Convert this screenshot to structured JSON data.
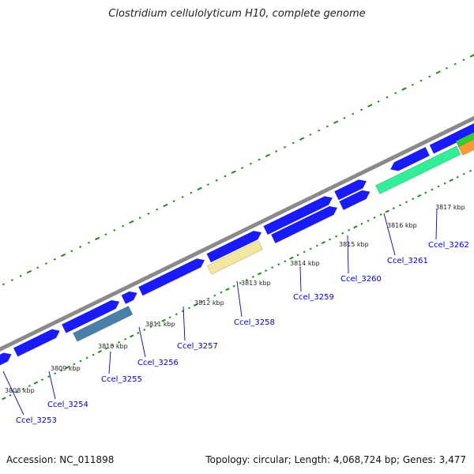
{
  "title": "Clostridium cellulolyticum H10, complete genome",
  "footer": {
    "accession": "Accession: NC_011898",
    "summary": "Topology: circular; Length: 4,068,724 bp; Genes: 3,477"
  },
  "colors": {
    "gene_blue": "#1a1aff",
    "backbone": "#8a8a8a",
    "tick_green": "#1f8a1f",
    "steel": "#4a7fa8",
    "khaki": "#f2e6a0",
    "mint": "#33ee99",
    "orange": "#ff9933",
    "green": "#33cc33",
    "purple": "#6633cc",
    "label_blue": "#0000cc"
  },
  "kbp_labels": [
    "3808 kbp",
    "3809 kbp",
    "3810 kbp",
    "3811 kbp",
    "3812 kbp",
    "3813 kbp",
    "3814 kbp",
    "3815 kbp",
    "3816 kbp",
    "3817 kbp"
  ],
  "gene_labels": [
    "Ccel_3253",
    "Ccel_3254",
    "Ccel_3255",
    "Ccel_3256",
    "Ccel_3257",
    "Ccel_3258",
    "Ccel_3259",
    "Ccel_3260",
    "Ccel_3261",
    "Ccel_3262"
  ]
}
